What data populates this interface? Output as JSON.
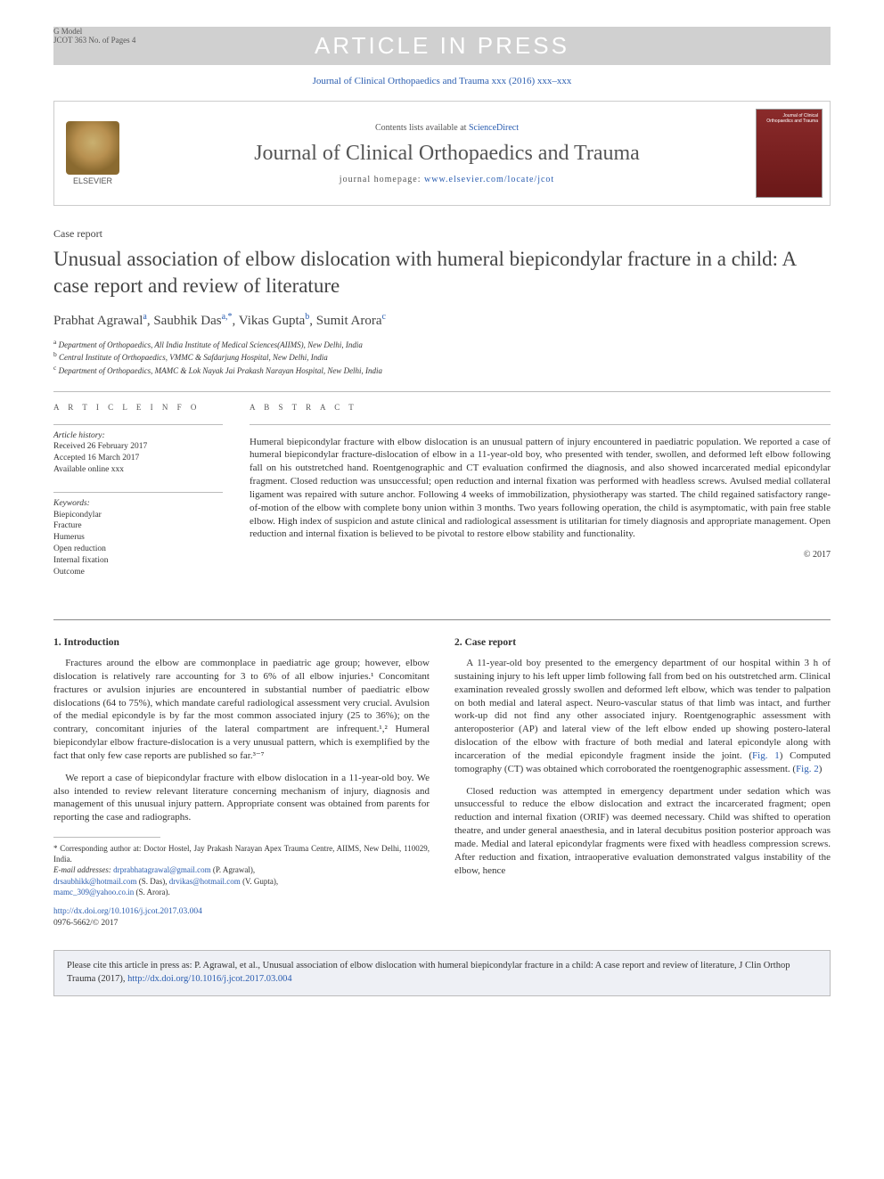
{
  "header": {
    "gmodel_line1": "G Model",
    "gmodel_line2": "JCOT 363 No. of Pages 4",
    "watermark": "ARTICLE IN PRESS",
    "journal_ref": "Journal of Clinical Orthopaedics and Trauma xxx (2016) xxx–xxx",
    "contents_prefix": "Contents lists available at ",
    "contents_link": "ScienceDirect",
    "journal_title": "Journal of Clinical Orthopaedics and Trauma",
    "homepage_prefix": "journal homepage: ",
    "homepage_link": "www.elsevier.com/locate/jcot",
    "elsevier": "ELSEVIER",
    "cover_text": "Journal of Clinical Orthopaedics and Trauma"
  },
  "article": {
    "type": "Case report",
    "title": "Unusual association of elbow dislocation with humeral biepicondylar fracture in a child: A case report and review of literature",
    "authors_html": "Prabhat Agrawal<sup>a</sup>, Saubhik Das<sup>a,*</sup>, Vikas Gupta<sup>b</sup>, Sumit Arora<sup>c</sup>",
    "affiliations": {
      "a": "Department of Orthopaedics, All India Institute of Medical Sciences(AIIMS), New Delhi, India",
      "b": "Central Institute of Orthopaedics, VMMC & Safdarjung Hospital, New Delhi, India",
      "c": "Department of Orthopaedics, MAMC & Lok Nayak Jai Prakash Narayan Hospital, New Delhi, India"
    }
  },
  "info": {
    "label": "A R T I C L E   I N F O",
    "history_label": "Article history:",
    "received": "Received 26 February 2017",
    "accepted": "Accepted 16 March 2017",
    "online": "Available online xxx",
    "keywords_label": "Keywords:",
    "keywords": [
      "Biepicondylar",
      "Fracture",
      "Humerus",
      "Open reduction",
      "Internal fixation",
      "Outcome"
    ]
  },
  "abstract": {
    "label": "A B S T R A C T",
    "text": "Humeral biepicondylar fracture with elbow dislocation is an unusual pattern of injury encountered in paediatric population. We reported a case of humeral biepicondylar fracture-dislocation of elbow in a 11-year-old boy, who presented with tender, swollen, and deformed left elbow following fall on his outstretched hand. Roentgenographic and CT evaluation confirmed the diagnosis, and also showed incarcerated medial epicondylar fragment. Closed reduction was unsuccessful; open reduction and internal fixation was performed with headless screws. Avulsed medial collateral ligament was repaired with suture anchor. Following 4 weeks of immobilization, physiotherapy was started. The child regained satisfactory range-of-motion of the elbow with complete bony union within 3 months. Two years following operation, the child is asymptomatic, with pain free stable elbow. High index of suspicion and astute clinical and radiological assessment is utilitarian for timely diagnosis and appropriate management. Open reduction and internal fixation is believed to be pivotal to restore elbow stability and functionality.",
    "copyright": "© 2017"
  },
  "body": {
    "intro_heading": "1. Introduction",
    "intro_p1": "Fractures around the elbow are commonplace in paediatric age group; however, elbow dislocation is relatively rare accounting for 3 to 6% of all elbow injuries.¹ Concomitant fractures or avulsion injuries are encountered in substantial number of paediatric elbow dislocations (64 to 75%), which mandate careful radiological assessment very crucial. Avulsion of the medial epicondyle is by far the most common associated injury (25 to 36%); on the contrary, concomitant injuries of the lateral compartment are infrequent.¹,² Humeral biepicondylar elbow fracture-dislocation is a very unusual pattern, which is exemplified by the fact that only few case reports are published so far.³⁻⁷",
    "intro_p2": "We report a case of biepicondylar fracture with elbow dislocation in a 11-year-old boy. We also intended to review relevant literature concerning mechanism of injury, diagnosis and management of this unusual injury pattern. Appropriate consent was obtained from parents for reporting the case and radiographs.",
    "case_heading": "2. Case report",
    "case_p1": "A 11-year-old boy presented to the emergency department of our hospital within 3 h of sustaining injury to his left upper limb following fall from bed on his outstretched arm. Clinical examination revealed grossly swollen and deformed left elbow, which was tender to palpation on both medial and lateral aspect. Neuro-vascular status of that limb was intact, and further work-up did not find any other associated injury. Roentgenographic assessment with anteroposterior (AP) and lateral view of the left elbow ended up showing postero-lateral dislocation of the elbow with fracture of both medial and lateral epicondyle along with incarceration of the medial epicondyle fragment inside the joint. (Fig. 1) Computed tomography (CT) was obtained which corroborated the roentgenographic assessment. (Fig. 2)",
    "case_p2": "Closed reduction was attempted in emergency department under sedation which was unsuccessful to reduce the elbow dislocation and extract the incarcerated fragment; open reduction and internal fixation (ORIF) was deemed necessary. Child was shifted to operation theatre, and under general anaesthesia, and in lateral decubitus position posterior approach was made. Medial and lateral epicondylar fragments were fixed with headless compression screws. After reduction and fixation, intraoperative evaluation demonstrated valgus instability of the elbow, hence"
  },
  "footnotes": {
    "corresponding": "* Corresponding author at: Doctor Hostel, Jay Prakash Narayan Apex Trauma Centre, AIIMS, New Delhi, 110029, India.",
    "emails_label": "E-mail addresses:",
    "emails": [
      {
        "addr": "drprabhatagrawal@gmail.com",
        "who": "(P. Agrawal)"
      },
      {
        "addr": "drsaubhikk@hotmail.com",
        "who": "(S. Das)"
      },
      {
        "addr": "drvikas@hotmail.com",
        "who": "(V. Gupta)"
      },
      {
        "addr": "mamc_309@yahoo.co.in",
        "who": "(S. Arora)"
      }
    ],
    "doi": "http://dx.doi.org/10.1016/j.jcot.2017.03.004",
    "issn": "0976-5662/© 2017"
  },
  "citation": {
    "text_prefix": "Please cite this article in press as: P. Agrawal, et al., Unusual association of elbow dislocation with humeral biepicondylar fracture in a child: A case report and review of literature, J Clin Orthop Trauma (2017), ",
    "link": "http://dx.doi.org/10.1016/j.jcot.2017.03.004"
  },
  "colors": {
    "link": "#2a5db0",
    "watermark_bg": "#d0d0d0",
    "cite_bg": "#eef0f5"
  }
}
